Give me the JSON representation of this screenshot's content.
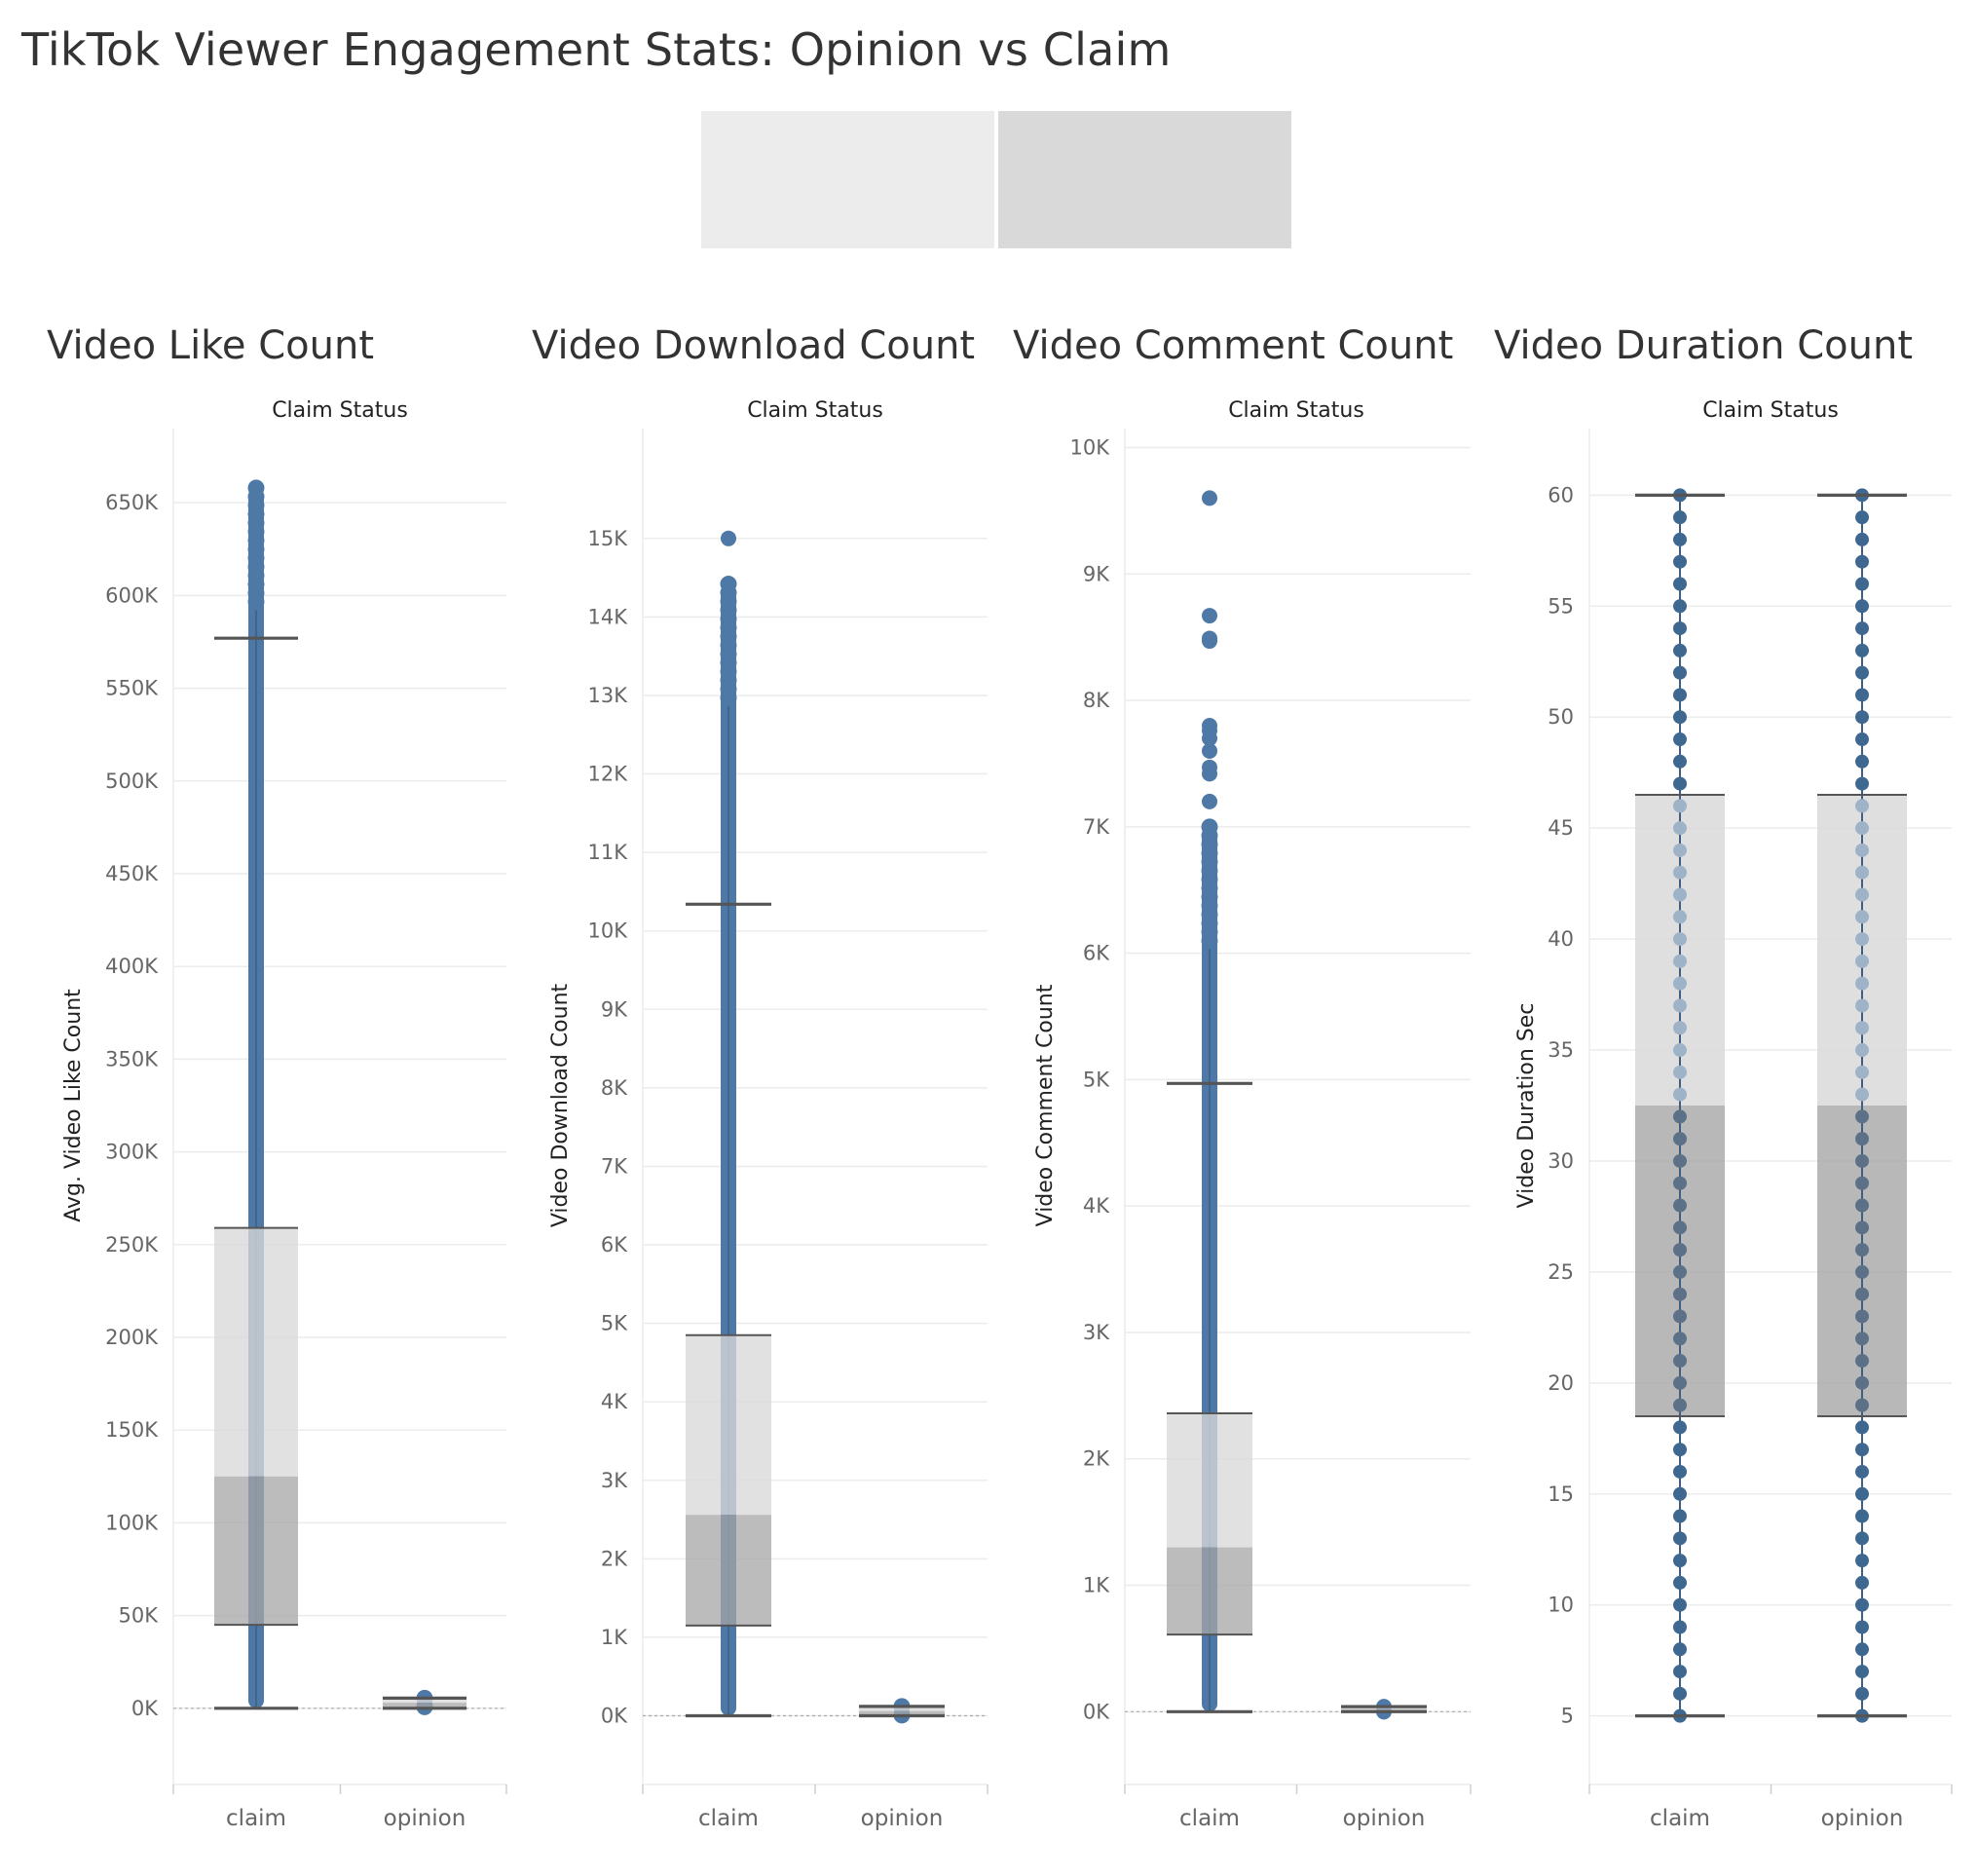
{
  "page": {
    "title": "TikTok Viewer Engagement Stats: Opinion vs Claim",
    "filter_colors": [
      "#ececec",
      "#d9d9d9"
    ]
  },
  "colors": {
    "dot": "#4e79a7",
    "whisker": "#555555",
    "box_upper": "#d9d9d9",
    "box_lower": "#a6a6a6",
    "grid": "#ececec"
  },
  "chart_data": [
    {
      "type": "box",
      "title": "Video Like Count",
      "header": "Claim Status",
      "ylabel": "Avg. Video Like Count",
      "categories": [
        "claim",
        "opinion"
      ],
      "ylim": [
        -40000,
        690000
      ],
      "yticks": [
        0,
        50000,
        100000,
        150000,
        200000,
        250000,
        300000,
        350000,
        400000,
        450000,
        500000,
        550000,
        600000,
        650000
      ],
      "ytick_labels": [
        "0K",
        "50K",
        "100K",
        "150K",
        "200K",
        "250K",
        "300K",
        "350K",
        "400K",
        "450K",
        "500K",
        "550K",
        "600K",
        "650K"
      ],
      "boxes": [
        {
          "category": "claim",
          "min": 0,
          "q1": 45000,
          "median": 125000,
          "q3": 259000,
          "max": 577000,
          "dots_min": 0,
          "dots_max": 658000
        },
        {
          "category": "opinion",
          "min": 0,
          "q1": 0,
          "median": 3000,
          "q3": 5500,
          "max": 5500,
          "dots_min": 0,
          "dots_max": 5500
        }
      ]
    },
    {
      "type": "box",
      "title": "Video Download Count",
      "header": "Claim Status",
      "ylabel": "Video Download Count",
      "categories": [
        "claim",
        "opinion"
      ],
      "ylim": [
        -850,
        16400
      ],
      "yticks": [
        0,
        1000,
        2000,
        3000,
        4000,
        5000,
        6000,
        7000,
        8000,
        9000,
        10000,
        11000,
        12000,
        13000,
        14000,
        15000
      ],
      "ytick_labels": [
        "0K",
        "1K",
        "2K",
        "3K",
        "4K",
        "5K",
        "6K",
        "7K",
        "8K",
        "9K",
        "10K",
        "11K",
        "12K",
        "13K",
        "14K",
        "15K"
      ],
      "boxes": [
        {
          "category": "claim",
          "min": 0,
          "q1": 1150,
          "median": 2560,
          "q3": 4850,
          "max": 10340,
          "dots_min": 0,
          "dots_max": 14420,
          "outliers": [
            15000
          ]
        },
        {
          "category": "opinion",
          "min": 0,
          "q1": 0,
          "median": 60,
          "q3": 120,
          "max": 120,
          "dots_min": 0,
          "dots_max": 120
        }
      ]
    },
    {
      "type": "box",
      "title": "Video Comment Count",
      "header": "Claim Status",
      "ylabel": "Video Comment Count",
      "categories": [
        "claim",
        "opinion"
      ],
      "ylim": [
        -560,
        10150
      ],
      "yticks": [
        0,
        1000,
        2000,
        3000,
        4000,
        5000,
        6000,
        7000,
        8000,
        9000,
        10000
      ],
      "ytick_labels": [
        "0K",
        "1K",
        "2K",
        "3K",
        "4K",
        "5K",
        "6K",
        "7K",
        "8K",
        "9K",
        "10K"
      ],
      "boxes": [
        {
          "category": "claim",
          "min": 0,
          "q1": 610,
          "median": 1300,
          "q3": 2360,
          "max": 4970,
          "dots_min": 0,
          "dots_max": 7000,
          "outliers": [
            7200,
            7420,
            7470,
            7600,
            7700,
            7760,
            7800,
            8470,
            8490,
            8670,
            9600
          ]
        },
        {
          "category": "opinion",
          "min": 0,
          "q1": 0,
          "median": 20,
          "q3": 40,
          "max": 40,
          "dots_min": 0,
          "dots_max": 40
        }
      ]
    },
    {
      "type": "box",
      "title": "Video Duration Count",
      "header": "Claim Status",
      "ylabel": "Video Duration Sec",
      "categories": [
        "claim",
        "opinion"
      ],
      "ylim": [
        2,
        63
      ],
      "yticks": [
        5,
        10,
        15,
        20,
        25,
        30,
        35,
        40,
        45,
        50,
        55,
        60
      ],
      "ytick_labels": [
        "5",
        "10",
        "15",
        "20",
        "25",
        "30",
        "35",
        "40",
        "45",
        "50",
        "55",
        "60"
      ],
      "boxes": [
        {
          "category": "claim",
          "min": 5,
          "q1": 18.5,
          "median": 32.5,
          "q3": 46.5,
          "max": 60,
          "discrete_dots": [
            5,
            60
          ]
        },
        {
          "category": "opinion",
          "min": 5,
          "q1": 18.5,
          "median": 32.5,
          "q3": 46.5,
          "max": 60,
          "discrete_dots": [
            5,
            60
          ]
        }
      ]
    }
  ]
}
